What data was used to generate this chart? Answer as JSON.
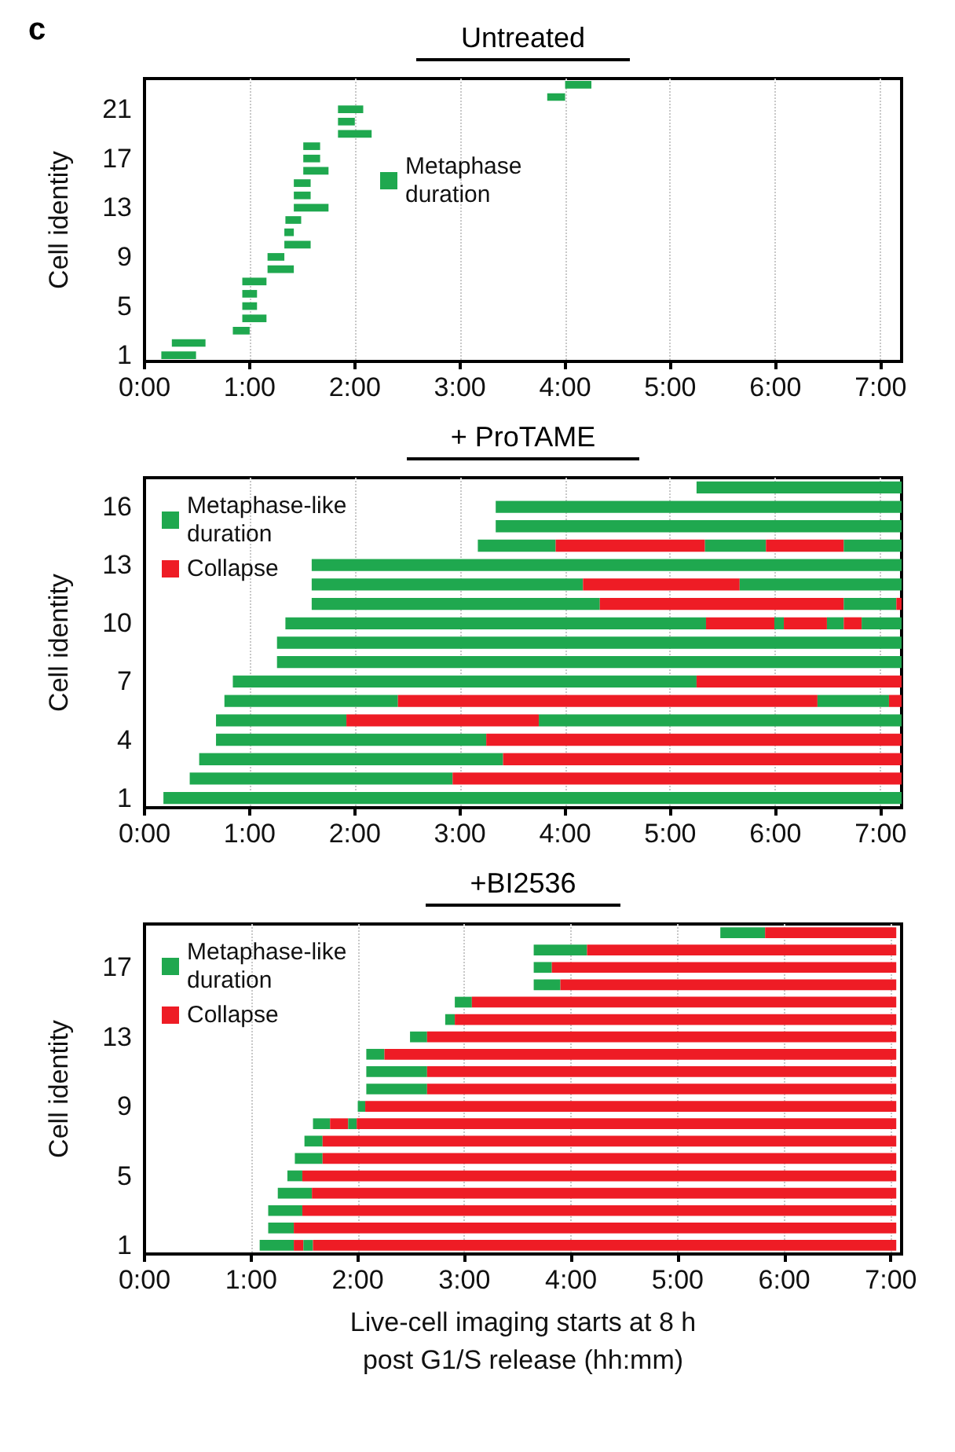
{
  "chart_data": [
    {
      "type": "bar",
      "orientation": "horizontal",
      "title": "Untreated",
      "ylabel": "Cell identity",
      "annotations": [
        "c"
      ],
      "grid": "x",
      "legend": "top",
      "categories": [
        null,
        null,
        "21",
        null,
        null,
        null,
        "17",
        null,
        null,
        null,
        "13",
        null,
        null,
        null,
        "9",
        null,
        null,
        null,
        "5",
        null,
        null,
        null,
        "1"
      ],
      "xlim": [
        0,
        7.2
      ],
      "xticks": [
        {
          "value": 0,
          "label": "0:00"
        },
        {
          "value": 1,
          "label": "1:00"
        },
        {
          "value": 2,
          "label": "2:00"
        },
        {
          "value": 3,
          "label": "3:00"
        },
        {
          "value": 4,
          "label": "4:00"
        },
        {
          "value": 5,
          "label": "5:00"
        },
        {
          "value": 6,
          "label": "6:00"
        },
        {
          "value": 7,
          "label": "7:00"
        }
      ],
      "series": [
        {
          "name": "Metaphase duration",
          "color": "#1fa84f",
          "base": [
            4.0,
            3.83,
            1.84,
            1.84,
            1.84,
            1.51,
            1.51,
            1.51,
            1.42,
            1.42,
            1.42,
            1.34,
            1.33,
            1.33,
            1.17,
            1.17,
            0.93,
            0.93,
            0.93,
            0.93,
            0.84,
            0.26,
            0.16
          ],
          "values": [
            0.25,
            0.17,
            0.24,
            0.16,
            0.32,
            0.16,
            0.16,
            0.24,
            0.16,
            0.16,
            0.33,
            0.15,
            0.09,
            0.25,
            0.16,
            0.25,
            0.23,
            0.14,
            0.14,
            0.23,
            0.16,
            0.32,
            0.33
          ]
        }
      ]
    },
    {
      "type": "bar",
      "orientation": "horizontal",
      "title": "+ ProTAME",
      "ylabel": "Cell identity",
      "grid": "x",
      "legend": "top left",
      "categories": [
        null,
        "16",
        null,
        null,
        "13",
        null,
        null,
        "10",
        null,
        null,
        "7",
        null,
        null,
        "4",
        null,
        null,
        "1"
      ],
      "xlim": [
        0,
        7.2
      ],
      "xticks": [
        {
          "value": 0,
          "label": "0:00"
        },
        {
          "value": 1,
          "label": "1:00"
        },
        {
          "value": 2,
          "label": "2:00"
        },
        {
          "value": 3,
          "label": "3:00"
        },
        {
          "value": 4,
          "label": "4:00"
        },
        {
          "value": 5,
          "label": "5:00"
        },
        {
          "value": 6,
          "label": "6:00"
        },
        {
          "value": 7,
          "label": "7:00"
        }
      ],
      "series": [
        {
          "name": "Metaphase-like duration",
          "color": "#1fa84f",
          "base": [
            5.25,
            3.34,
            3.34,
            3.17,
            1.59,
            1.59,
            1.59,
            1.34,
            1.26,
            1.26,
            0.84,
            0.76,
            0.68,
            0.68,
            0.52,
            0.43,
            0.18
          ],
          "values": [
            1.95,
            3.86,
            3.86,
            0.74,
            5.61,
            2.58,
            2.74,
            4.0,
            5.94,
            5.94,
            4.41,
            1.65,
            1.24,
            2.57,
            2.89,
            2.5,
            7.02
          ]
        },
        {
          "name": "Collapse",
          "color": "#ee1c25",
          "base": [
            null,
            null,
            null,
            3.91,
            null,
            4.17,
            4.33,
            5.34,
            null,
            null,
            5.25,
            2.41,
            1.92,
            3.25,
            3.41,
            2.93,
            null
          ],
          "values": [
            null,
            null,
            null,
            1.42,
            null,
            1.49,
            2.32,
            0.65,
            null,
            null,
            1.95,
            3.99,
            1.83,
            3.95,
            3.79,
            4.27,
            null
          ]
        },
        {
          "color": "#1fa84f",
          "base": [
            null,
            null,
            null,
            5.33,
            null,
            5.66,
            6.65,
            5.99,
            null,
            null,
            null,
            6.4,
            3.75,
            null,
            null,
            null,
            null
          ],
          "values": [
            null,
            null,
            null,
            0.58,
            null,
            1.54,
            0.5,
            0.09,
            null,
            null,
            null,
            0.68,
            3.45,
            null,
            null,
            null,
            null
          ]
        },
        {
          "color": "#ee1c25",
          "base": [
            null,
            null,
            null,
            5.91,
            null,
            null,
            7.15,
            6.08,
            null,
            null,
            null,
            7.08,
            null,
            null,
            null,
            null,
            null
          ],
          "values": [
            null,
            null,
            null,
            0.74,
            null,
            null,
            0.05,
            0.41,
            null,
            null,
            null,
            0.12,
            null,
            null,
            null,
            null,
            null
          ]
        },
        {
          "color": "#1fa84f",
          "base": [
            null,
            null,
            null,
            6.65,
            null,
            null,
            null,
            6.49,
            null,
            null,
            null,
            null,
            null,
            null,
            null,
            null,
            null
          ],
          "values": [
            null,
            null,
            null,
            0.55,
            null,
            null,
            null,
            0.16,
            null,
            null,
            null,
            null,
            null,
            null,
            null,
            null,
            null
          ]
        },
        {
          "color": "#ee1c25",
          "base": [
            null,
            null,
            null,
            null,
            null,
            null,
            null,
            6.65,
            null,
            null,
            null,
            null,
            null,
            null,
            null,
            null,
            null
          ],
          "values": [
            null,
            null,
            null,
            null,
            null,
            null,
            null,
            0.17,
            null,
            null,
            null,
            null,
            null,
            null,
            null,
            null,
            null
          ]
        },
        {
          "color": "#1fa84f",
          "base": [
            null,
            null,
            null,
            null,
            null,
            null,
            null,
            6.82,
            null,
            null,
            null,
            null,
            null,
            null,
            null,
            null,
            null
          ],
          "values": [
            null,
            null,
            null,
            null,
            null,
            null,
            null,
            0.38,
            null,
            null,
            null,
            null,
            null,
            null,
            null,
            null,
            null
          ]
        }
      ]
    },
    {
      "type": "bar",
      "orientation": "horizontal",
      "title": "+BI2536",
      "ylabel": "Cell identity",
      "xlabel": "Live-cell imaging starts at 8 h post G1/S release (hh:mm)",
      "grid": "x",
      "legend": "top left",
      "categories": [
        null,
        null,
        "17",
        null,
        null,
        null,
        "13",
        null,
        null,
        null,
        "9",
        null,
        null,
        null,
        "5",
        null,
        null,
        null,
        "1"
      ],
      "xlim": [
        0,
        7.1
      ],
      "xticks": [
        {
          "value": 0,
          "label": "0:00"
        },
        {
          "value": 1,
          "label": "1:00"
        },
        {
          "value": 2,
          "label": "2:00"
        },
        {
          "value": 3,
          "label": "3:00"
        },
        {
          "value": 4,
          "label": "4:00"
        },
        {
          "value": 5,
          "label": "5:00"
        },
        {
          "value": 6,
          "label": "6:00"
        },
        {
          "value": 7,
          "label": "7:00"
        }
      ],
      "series": [
        {
          "name": "Metaphase-like duration",
          "color": "#1fa84f",
          "base": [
            5.4,
            3.65,
            3.65,
            3.65,
            2.91,
            2.82,
            2.49,
            2.08,
            2.08,
            2.08,
            2.0,
            1.58,
            1.5,
            1.41,
            1.34,
            1.25,
            1.16,
            1.16,
            1.08
          ],
          "values": [
            0.42,
            0.5,
            0.17,
            0.25,
            0.16,
            0.09,
            0.16,
            0.17,
            0.57,
            0.57,
            0.07,
            0.16,
            0.17,
            0.26,
            0.14,
            0.32,
            0.32,
            0.24,
            0.32
          ]
        },
        {
          "name": "Collapse",
          "color": "#ee1c25",
          "base": [
            5.82,
            4.15,
            3.82,
            3.9,
            3.07,
            2.91,
            2.65,
            2.25,
            2.65,
            2.65,
            2.07,
            1.74,
            1.67,
            1.67,
            1.48,
            1.57,
            1.48,
            1.4,
            1.4
          ],
          "values": [
            1.23,
            2.9,
            3.23,
            3.15,
            3.98,
            4.14,
            4.4,
            4.8,
            4.4,
            4.4,
            4.98,
            0.17,
            5.38,
            5.38,
            5.57,
            5.48,
            5.57,
            5.65,
            0.09
          ]
        },
        {
          "color": "#1fa84f",
          "base": [
            null,
            null,
            null,
            null,
            null,
            null,
            null,
            null,
            null,
            null,
            null,
            1.91,
            null,
            null,
            null,
            null,
            null,
            null,
            1.49
          ],
          "values": [
            null,
            null,
            null,
            null,
            null,
            null,
            null,
            null,
            null,
            null,
            null,
            0.08,
            null,
            null,
            null,
            null,
            null,
            null,
            0.09
          ]
        },
        {
          "color": "#ee1c25",
          "base": [
            null,
            null,
            null,
            null,
            null,
            null,
            null,
            null,
            null,
            null,
            null,
            1.99,
            null,
            null,
            null,
            null,
            null,
            null,
            1.58
          ],
          "values": [
            null,
            null,
            null,
            null,
            null,
            null,
            null,
            null,
            null,
            null,
            null,
            5.06,
            null,
            null,
            null,
            null,
            null,
            null,
            5.47
          ]
        }
      ]
    }
  ]
}
